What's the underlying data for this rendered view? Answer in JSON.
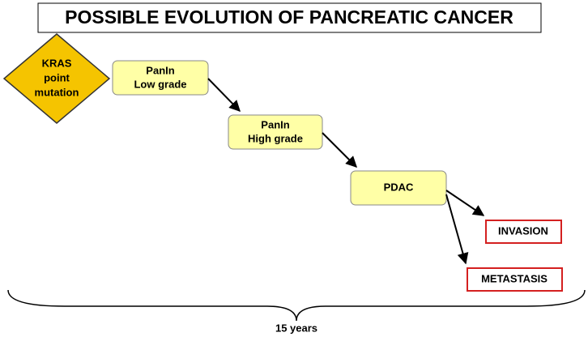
{
  "title": "POSSIBLE EVOLUTION OF PANCREATIC CANCER",
  "nodes": [
    {
      "lines": [
        "KRAS",
        "point",
        "mutation"
      ]
    },
    {
      "lines": [
        "PanIn",
        "Low grade"
      ]
    },
    {
      "lines": [
        "PanIn",
        "High grade"
      ]
    },
    {
      "lines": [
        "PDAC"
      ]
    },
    {
      "lines": [
        "INVASION"
      ]
    },
    {
      "lines": [
        "METASTASIS"
      ]
    }
  ],
  "timeline": "15 years"
}
